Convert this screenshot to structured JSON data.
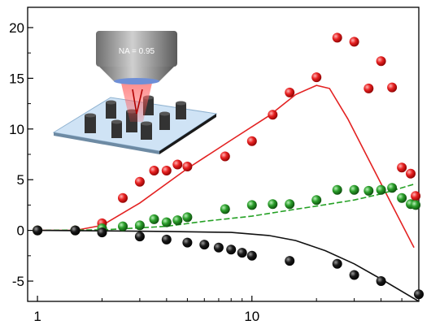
{
  "chart_data": {
    "type": "scatter",
    "x_scale": "log",
    "xlim": [
      0.9,
      60
    ],
    "ylim": [
      -7,
      22
    ],
    "xticks": [
      1,
      10
    ],
    "xtick_labels": [
      "1",
      "10"
    ],
    "yticks": [
      20,
      15,
      10,
      5,
      0,
      -5
    ],
    "ytick_labels": [
      "20",
      "15",
      "10",
      "5",
      "0",
      "-5"
    ],
    "grid": false,
    "series": [
      {
        "color": "#e32222",
        "points": [
          {
            "x": 1.0,
            "y": 0.0
          },
          {
            "x": 1.5,
            "y": 0.0
          },
          {
            "x": 2.0,
            "y": 0.7
          },
          {
            "x": 2.5,
            "y": 3.2
          },
          {
            "x": 3.0,
            "y": 4.8
          },
          {
            "x": 3.5,
            "y": 5.9
          },
          {
            "x": 4.0,
            "y": 5.9
          },
          {
            "x": 4.5,
            "y": 6.5
          },
          {
            "x": 5.0,
            "y": 6.3
          },
          {
            "x": 7.5,
            "y": 7.3
          },
          {
            "x": 10.0,
            "y": 8.8
          },
          {
            "x": 12.5,
            "y": 11.4
          },
          {
            "x": 15.0,
            "y": 13.6
          },
          {
            "x": 20.0,
            "y": 15.1
          },
          {
            "x": 25.0,
            "y": 19.0
          },
          {
            "x": 30.0,
            "y": 18.6
          },
          {
            "x": 35.0,
            "y": 14.0
          },
          {
            "x": 40.0,
            "y": 16.7
          },
          {
            "x": 45.0,
            "y": 14.1
          },
          {
            "x": 50.0,
            "y": 6.2
          },
          {
            "x": 55.0,
            "y": 5.6
          },
          {
            "x": 58.0,
            "y": 3.4
          }
        ],
        "fit": [
          [
            1.0,
            0.0
          ],
          [
            1.5,
            0.0
          ],
          [
            2.0,
            0.5
          ],
          [
            3.0,
            2.7
          ],
          [
            5.0,
            6.1
          ],
          [
            8.0,
            8.9
          ],
          [
            12.0,
            11.3
          ],
          [
            16.0,
            13.4
          ],
          [
            20.0,
            14.3
          ],
          [
            23.0,
            14.0
          ],
          [
            28.0,
            11.0
          ],
          [
            35.0,
            7.0
          ],
          [
            45.0,
            2.5
          ],
          [
            57.0,
            -1.7
          ]
        ]
      },
      {
        "color": "#25a125",
        "points": [
          {
            "x": 1.0,
            "y": 0.0
          },
          {
            "x": 1.5,
            "y": 0.0
          },
          {
            "x": 2.0,
            "y": 0.2
          },
          {
            "x": 2.5,
            "y": 0.4
          },
          {
            "x": 3.0,
            "y": 0.5
          },
          {
            "x": 3.5,
            "y": 1.1
          },
          {
            "x": 4.0,
            "y": 0.8
          },
          {
            "x": 4.5,
            "y": 1.0
          },
          {
            "x": 5.0,
            "y": 1.3
          },
          {
            "x": 7.5,
            "y": 2.1
          },
          {
            "x": 10.0,
            "y": 2.5
          },
          {
            "x": 12.5,
            "y": 2.6
          },
          {
            "x": 15.0,
            "y": 2.6
          },
          {
            "x": 20.0,
            "y": 3.0
          },
          {
            "x": 25.0,
            "y": 4.0
          },
          {
            "x": 30.0,
            "y": 4.0
          },
          {
            "x": 35.0,
            "y": 3.9
          },
          {
            "x": 40.0,
            "y": 4.0
          },
          {
            "x": 45.0,
            "y": 4.2
          },
          {
            "x": 50.0,
            "y": 3.2
          },
          {
            "x": 55.0,
            "y": 2.6
          },
          {
            "x": 58.0,
            "y": 2.5
          }
        ],
        "fit": [
          [
            1.0,
            0.0
          ],
          [
            2.0,
            0.05
          ],
          [
            4.0,
            0.4
          ],
          [
            6.0,
            0.9
          ],
          [
            10.0,
            1.4
          ],
          [
            15.0,
            2.0
          ],
          [
            20.0,
            2.4
          ],
          [
            30.0,
            3.0
          ],
          [
            40.0,
            3.6
          ],
          [
            58.0,
            4.6
          ]
        ]
      },
      {
        "color": "#111111",
        "points": [
          {
            "x": 1.0,
            "y": 0.0
          },
          {
            "x": 1.5,
            "y": 0.0
          },
          {
            "x": 2.0,
            "y": -0.2
          },
          {
            "x": 3.0,
            "y": -0.6
          },
          {
            "x": 4.0,
            "y": -0.9
          },
          {
            "x": 5.0,
            "y": -1.2
          },
          {
            "x": 6.0,
            "y": -1.4
          },
          {
            "x": 7.0,
            "y": -1.7
          },
          {
            "x": 8.0,
            "y": -1.9
          },
          {
            "x": 9.0,
            "y": -2.2
          },
          {
            "x": 10.0,
            "y": -2.5
          },
          {
            "x": 15.0,
            "y": -3.0
          },
          {
            "x": 25.0,
            "y": -3.3
          },
          {
            "x": 30.0,
            "y": -4.4
          },
          {
            "x": 40.0,
            "y": -5.0
          },
          {
            "x": 60.0,
            "y": -6.3
          }
        ],
        "fit": [
          [
            1.0,
            0.0
          ],
          [
            2.0,
            -0.05
          ],
          [
            4.0,
            -0.1
          ],
          [
            8.0,
            -0.2
          ],
          [
            12.0,
            -0.5
          ],
          [
            16.0,
            -1.0
          ],
          [
            22.0,
            -2.0
          ],
          [
            30.0,
            -3.3
          ],
          [
            40.0,
            -4.8
          ],
          [
            60.0,
            -7.0
          ]
        ]
      }
    ]
  },
  "inset": {
    "label": "NA = 0.95"
  }
}
